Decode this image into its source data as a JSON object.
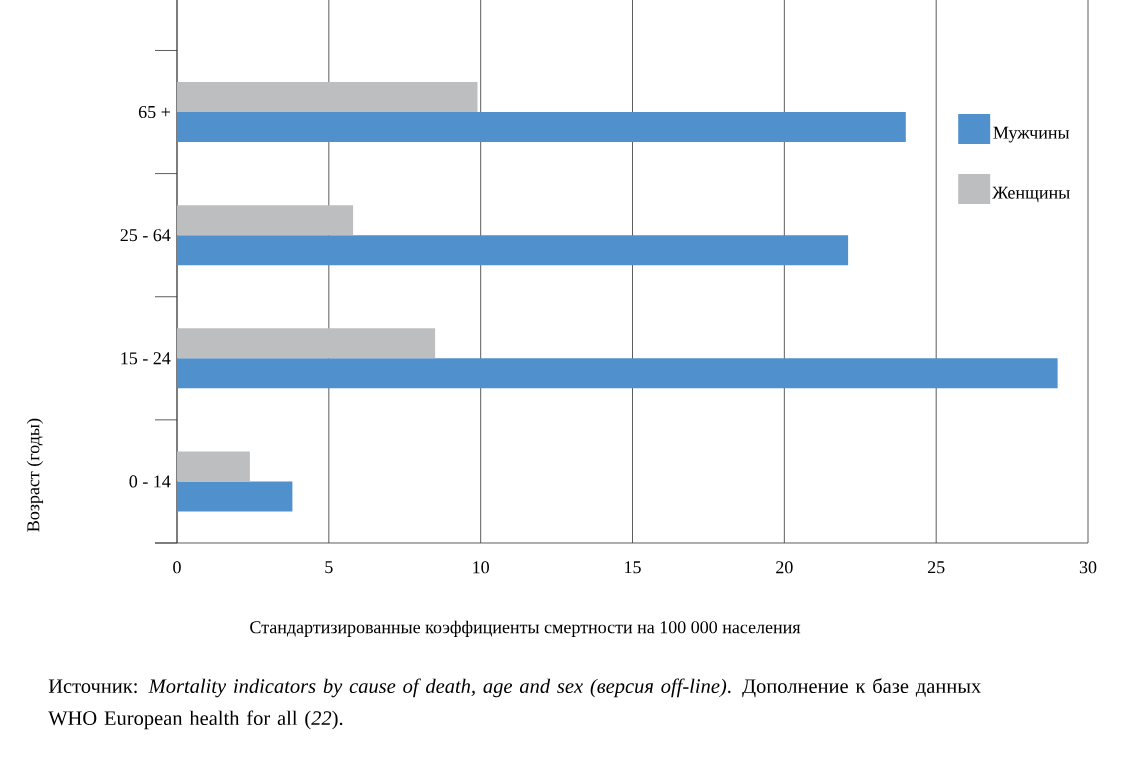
{
  "chart_data": {
    "type": "bar",
    "orientation": "horizontal",
    "categories": [
      "65 +",
      "25 - 64",
      "15 - 24",
      "0 - 14"
    ],
    "series": [
      {
        "name": "Мужчины",
        "color": "#4f90cd",
        "values": [
          24.0,
          22.1,
          29.0,
          3.8
        ]
      },
      {
        "name": "Женщины",
        "color": "#bdbec0",
        "values": [
          9.9,
          5.8,
          8.5,
          2.4
        ]
      }
    ],
    "xlim": [
      0,
      30
    ],
    "xticks": [
      0,
      5,
      10,
      15,
      20,
      25,
      30
    ],
    "xlabel": "Стандартизированные коэффициенты смертности на 100 000 населения",
    "ylabel": "Возраст (годы)",
    "grid": "x",
    "legend": "right",
    "annotations": [
      "Источник: *Mortality indicators by cause of death, age and sex (версия off-line)*. Дополнение к базе данных WHO European health for all (*22*)."
    ]
  }
}
